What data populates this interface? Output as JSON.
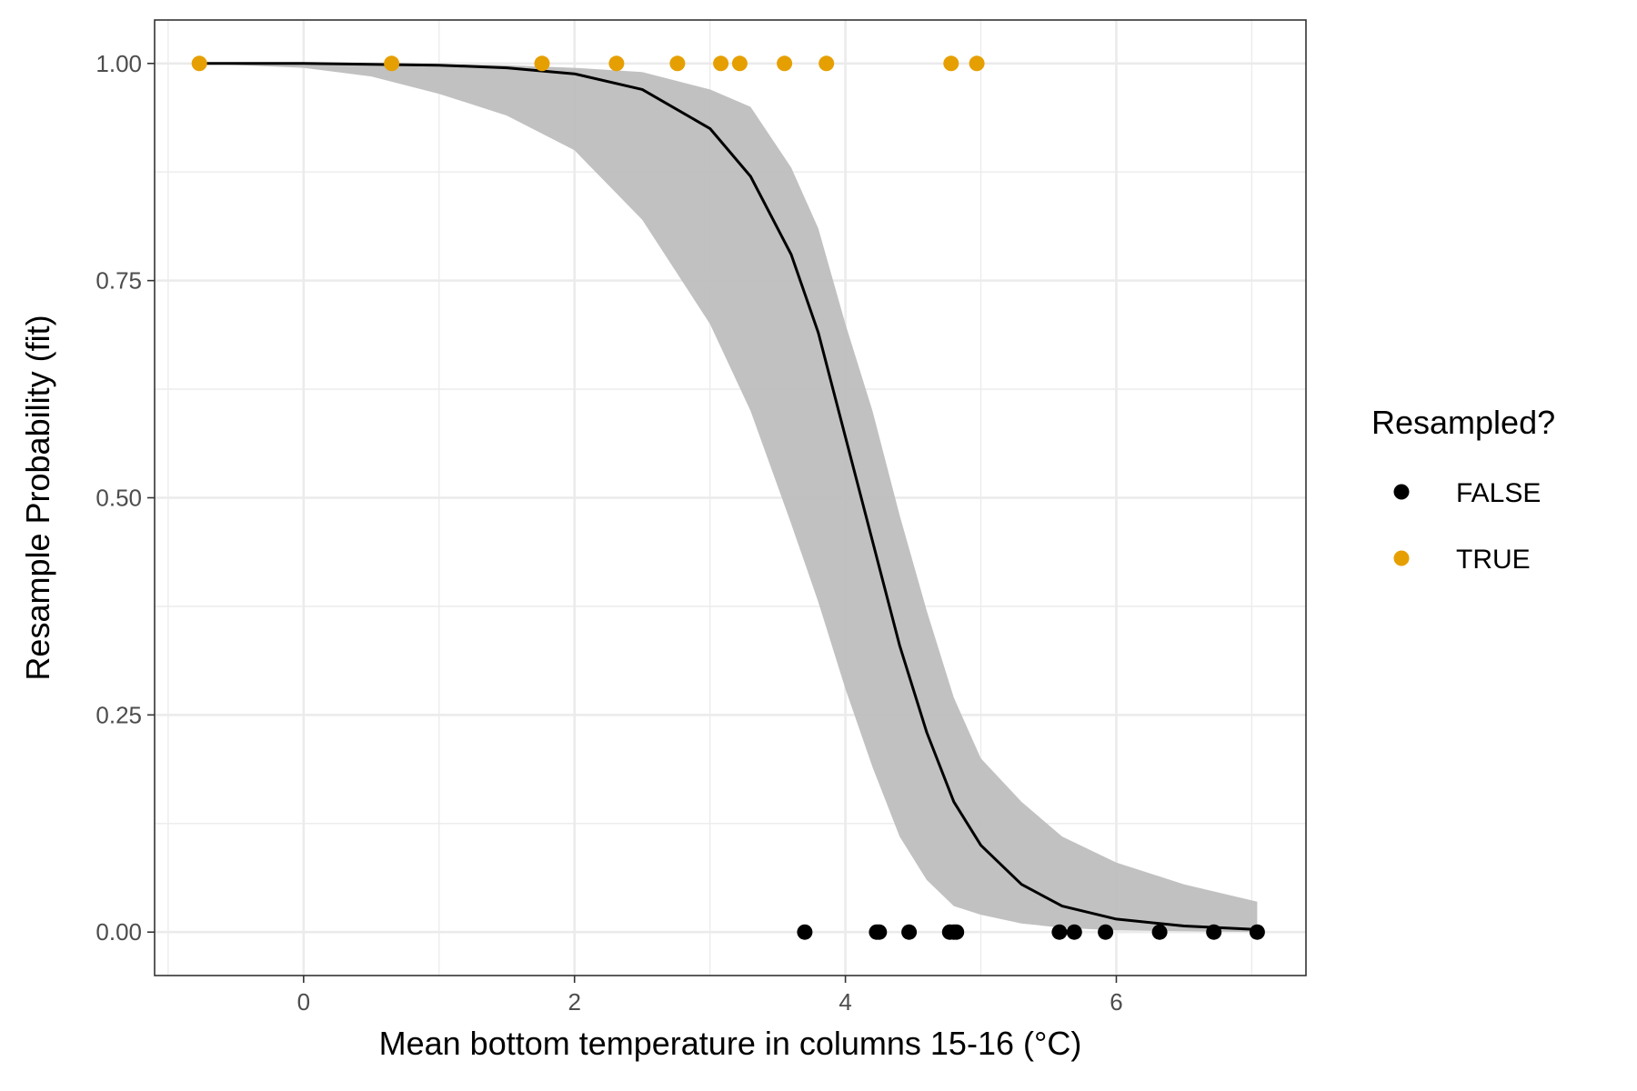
{
  "chart_data": {
    "type": "scatter",
    "xlabel": "Mean bottom temperature in columns 15-16 (°C)",
    "ylabel": "Resample Probability (fit)",
    "xlim": [
      -1.1,
      7.4
    ],
    "ylim": [
      -0.05,
      1.05
    ],
    "x_ticks": [
      0,
      2,
      4,
      6
    ],
    "x_tick_labels": [
      "0",
      "2",
      "4",
      "6"
    ],
    "y_ticks": [
      0,
      0.25,
      0.5,
      0.75,
      1
    ],
    "y_tick_labels": [
      "0.00",
      "0.25",
      "0.50",
      "0.75",
      "1.00"
    ],
    "grid": true,
    "legend": {
      "title": "Resampled?",
      "position": "right",
      "entries": [
        {
          "label": "FALSE",
          "color": "#000000"
        },
        {
          "label": "TRUE",
          "color": "#E69F00"
        }
      ]
    },
    "series": [
      {
        "name": "FALSE",
        "type": "scatter",
        "color": "#000000",
        "points": [
          {
            "x": 3.7,
            "y": 0
          },
          {
            "x": 4.23,
            "y": 0
          },
          {
            "x": 4.25,
            "y": 0
          },
          {
            "x": 4.47,
            "y": 0
          },
          {
            "x": 4.77,
            "y": 0
          },
          {
            "x": 4.8,
            "y": 0
          },
          {
            "x": 4.82,
            "y": 0
          },
          {
            "x": 5.58,
            "y": 0
          },
          {
            "x": 5.69,
            "y": 0
          },
          {
            "x": 5.92,
            "y": 0
          },
          {
            "x": 6.32,
            "y": 0
          },
          {
            "x": 6.72,
            "y": 0
          },
          {
            "x": 7.04,
            "y": 0
          }
        ]
      },
      {
        "name": "TRUE",
        "type": "scatter",
        "color": "#E69F00",
        "points": [
          {
            "x": -0.77,
            "y": 1
          },
          {
            "x": 0.65,
            "y": 1
          },
          {
            "x": 1.76,
            "y": 1
          },
          {
            "x": 2.31,
            "y": 1
          },
          {
            "x": 2.76,
            "y": 1
          },
          {
            "x": 3.08,
            "y": 1
          },
          {
            "x": 3.22,
            "y": 1
          },
          {
            "x": 3.55,
            "y": 1
          },
          {
            "x": 3.86,
            "y": 1
          },
          {
            "x": 4.78,
            "y": 1
          },
          {
            "x": 4.97,
            "y": 1
          }
        ]
      },
      {
        "type": "line",
        "color": "#000000",
        "x": [
          -0.77,
          0.0,
          0.5,
          1.0,
          1.5,
          2.0,
          2.5,
          3.0,
          3.3,
          3.6,
          3.8,
          4.0,
          4.1,
          4.2,
          4.4,
          4.6,
          4.8,
          5.0,
          5.3,
          5.6,
          6.0,
          6.5,
          7.04
        ],
        "y": [
          1.0,
          1.0,
          0.999,
          0.998,
          0.995,
          0.988,
          0.97,
          0.925,
          0.87,
          0.78,
          0.69,
          0.57,
          0.51,
          0.45,
          0.33,
          0.23,
          0.15,
          0.1,
          0.055,
          0.03,
          0.015,
          0.007,
          0.003
        ]
      },
      {
        "type": "area",
        "color": "#bebebe",
        "x": [
          -0.77,
          0.0,
          0.5,
          1.0,
          1.5,
          2.0,
          2.5,
          3.0,
          3.3,
          3.6,
          3.8,
          4.0,
          4.2,
          4.4,
          4.6,
          4.8,
          5.0,
          5.3,
          5.6,
          6.0,
          6.5,
          7.04
        ],
        "y_lower": [
          1.0,
          0.995,
          0.985,
          0.965,
          0.94,
          0.9,
          0.82,
          0.7,
          0.6,
          0.47,
          0.38,
          0.28,
          0.19,
          0.11,
          0.06,
          0.03,
          0.02,
          0.01,
          0.005,
          0.002,
          0.001,
          0.0
        ],
        "y_upper": [
          1.0,
          1.0,
          1.0,
          0.999,
          0.998,
          0.995,
          0.99,
          0.97,
          0.95,
          0.88,
          0.81,
          0.7,
          0.6,
          0.48,
          0.37,
          0.27,
          0.2,
          0.15,
          0.11,
          0.08,
          0.055,
          0.035
        ]
      }
    ]
  }
}
